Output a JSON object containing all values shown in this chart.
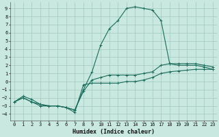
{
  "xlabel": "Humidex (Indice chaleur)",
  "xlim": [
    -0.5,
    23.5
  ],
  "ylim": [
    -4.8,
    9.8
  ],
  "xticks": [
    0,
    1,
    2,
    3,
    4,
    5,
    6,
    7,
    8,
    9,
    10,
    11,
    12,
    13,
    14,
    15,
    16,
    17,
    18,
    19,
    20,
    21,
    22,
    23
  ],
  "yticks": [
    -4,
    -3,
    -2,
    -1,
    0,
    1,
    2,
    3,
    4,
    5,
    6,
    7,
    8,
    9
  ],
  "bg_color": "#c8e8e0",
  "line_color": "#1a6b5a",
  "grid_color": "#a0c8c0",
  "curve_top_x": [
    0,
    1,
    2,
    3,
    4,
    5,
    6,
    7,
    8,
    9,
    10,
    11,
    12,
    13,
    14,
    15,
    16,
    17,
    18,
    19,
    20,
    21,
    22,
    23
  ],
  "curve_top_y": [
    -2.5,
    -2.0,
    -2.5,
    -3.0,
    -3.0,
    -3.0,
    -3.2,
    -3.5,
    -1.0,
    1.2,
    4.5,
    6.5,
    7.5,
    9.0,
    9.2,
    9.0,
    8.8,
    7.5,
    2.2,
    2.0,
    2.0,
    2.0,
    1.8,
    1.5
  ],
  "curve_mid_x": [
    0,
    1,
    2,
    3,
    4,
    5,
    6,
    7,
    8,
    9,
    10,
    11,
    12,
    13,
    14,
    15,
    16,
    17,
    18,
    19,
    20,
    21,
    22,
    23
  ],
  "curve_mid_y": [
    -2.5,
    -1.8,
    -2.2,
    -2.8,
    -3.0,
    -3.0,
    -3.2,
    -3.5,
    -1.2,
    0.2,
    0.5,
    0.8,
    0.8,
    0.8,
    0.8,
    1.0,
    1.2,
    2.0,
    2.2,
    2.2,
    2.2,
    2.2,
    2.0,
    1.8
  ],
  "curve_bot_x": [
    0,
    1,
    2,
    3,
    4,
    5,
    6,
    7,
    8,
    9,
    10,
    11,
    12,
    13,
    14,
    15,
    16,
    17,
    18,
    19,
    20,
    21,
    22,
    23
  ],
  "curve_bot_y": [
    -2.5,
    -2.0,
    -2.5,
    -2.8,
    -3.0,
    -3.0,
    -3.2,
    -3.8,
    -0.4,
    -0.2,
    -0.2,
    -0.2,
    -0.2,
    0.0,
    0.0,
    0.2,
    0.5,
    1.0,
    1.2,
    1.3,
    1.4,
    1.5,
    1.5,
    1.5
  ]
}
